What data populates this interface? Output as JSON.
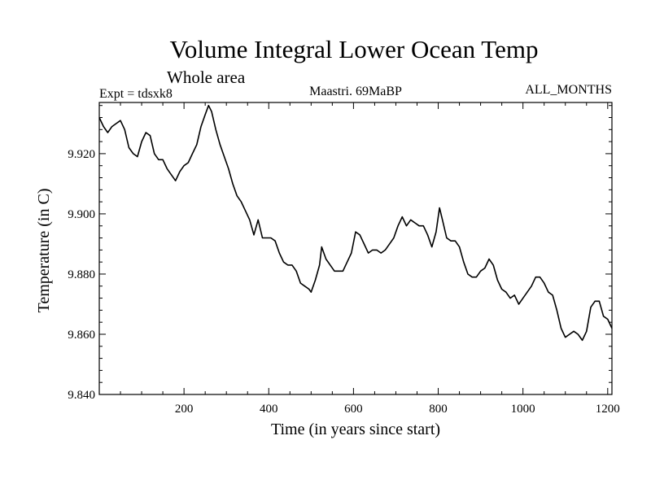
{
  "chart_data": {
    "type": "line",
    "title": "Volume Integral Lower Ocean Temp",
    "subtitle": "Whole area",
    "expt_label": "Expt = tdsxk8",
    "run_label": "Maastri.  69MaBP",
    "months_label": "ALL_MONTHS",
    "xlabel": "Time (in years since start)",
    "ylabel": "Temperature (in C)",
    "xlim": [
      0,
      1210
    ],
    "ylim": [
      9.84,
      9.937
    ],
    "x_ticks": [
      200,
      400,
      600,
      800,
      1000,
      1200
    ],
    "x_tick_labels": [
      "200",
      "400",
      "600",
      "800",
      "1000",
      "1200"
    ],
    "y_ticks": [
      9.84,
      9.86,
      9.88,
      9.9,
      9.92
    ],
    "y_tick_labels": [
      "9.840",
      "9.860",
      "9.880",
      "9.900",
      "9.920"
    ],
    "grid": false,
    "color": "#000000",
    "series": [
      {
        "name": "Volume Integral Lower Ocean Temp",
        "x": [
          0,
          10,
          20,
          30,
          40,
          50,
          60,
          70,
          80,
          90,
          100,
          110,
          120,
          130,
          140,
          150,
          160,
          170,
          180,
          190,
          200,
          210,
          220,
          230,
          240,
          250,
          258,
          265,
          275,
          285,
          295,
          305,
          315,
          325,
          335,
          345,
          355,
          365,
          375,
          385,
          395,
          405,
          415,
          425,
          435,
          445,
          455,
          465,
          475,
          485,
          495,
          500,
          510,
          520,
          525,
          535,
          545,
          555,
          565,
          575,
          585,
          595,
          605,
          615,
          625,
          635,
          645,
          655,
          665,
          675,
          685,
          695,
          705,
          715,
          725,
          735,
          745,
          755,
          765,
          775,
          785,
          795,
          803,
          810,
          820,
          830,
          840,
          850,
          860,
          870,
          880,
          890,
          900,
          910,
          920,
          930,
          940,
          950,
          960,
          970,
          980,
          990,
          1000,
          1010,
          1020,
          1030,
          1040,
          1050,
          1060,
          1070,
          1080,
          1090,
          1100,
          1110,
          1120,
          1130,
          1140,
          1150,
          1160,
          1170,
          1180,
          1190,
          1200,
          1210
        ],
        "y": [
          9.932,
          9.929,
          9.927,
          9.929,
          9.93,
          9.931,
          9.928,
          9.922,
          9.92,
          9.919,
          9.924,
          9.927,
          9.926,
          9.92,
          9.918,
          9.918,
          9.915,
          9.913,
          9.911,
          9.914,
          9.916,
          9.917,
          9.92,
          9.923,
          9.929,
          9.933,
          9.936,
          9.934,
          9.928,
          9.923,
          9.919,
          9.915,
          9.91,
          9.906,
          9.904,
          9.901,
          9.898,
          9.893,
          9.898,
          9.892,
          9.892,
          9.892,
          9.891,
          9.887,
          9.884,
          9.883,
          9.883,
          9.881,
          9.877,
          9.876,
          9.875,
          9.874,
          9.878,
          9.883,
          9.889,
          9.885,
          9.883,
          9.881,
          9.881,
          9.881,
          9.884,
          9.887,
          9.894,
          9.893,
          9.89,
          9.887,
          9.888,
          9.888,
          9.887,
          9.888,
          9.89,
          9.892,
          9.896,
          9.899,
          9.896,
          9.898,
          9.897,
          9.896,
          9.896,
          9.893,
          9.889,
          9.894,
          9.902,
          9.898,
          9.892,
          9.891,
          9.891,
          9.889,
          9.884,
          9.88,
          9.879,
          9.879,
          9.881,
          9.882,
          9.885,
          9.883,
          9.878,
          9.875,
          9.874,
          9.872,
          9.873,
          9.87,
          9.872,
          9.874,
          9.876,
          9.879,
          9.879,
          9.877,
          9.874,
          9.873,
          9.868,
          9.862,
          9.859,
          9.86,
          9.861,
          9.86,
          9.858,
          9.861,
          9.869,
          9.871,
          9.871,
          9.866,
          9.865,
          9.862
        ]
      }
    ]
  }
}
